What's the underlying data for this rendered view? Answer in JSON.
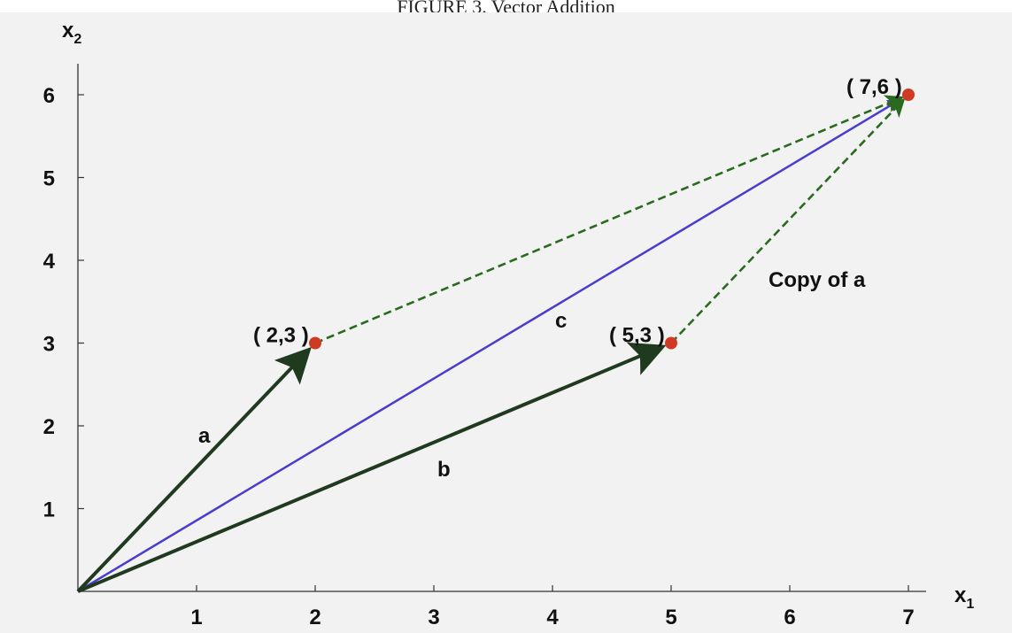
{
  "caption": "FIGURE 3.  Vector Addition",
  "axes": {
    "x_label": "x",
    "x_sub": "1",
    "y_label": "x",
    "y_sub": "2",
    "x_ticks": [
      "1",
      "2",
      "3",
      "4",
      "5",
      "6",
      "7"
    ],
    "y_ticks": [
      "1",
      "2",
      "3",
      "4",
      "5",
      "6"
    ]
  },
  "labels": {
    "a": "a",
    "b": "b",
    "c": "c",
    "copy": "Copy of a"
  },
  "points": [
    {
      "text": "( 2,3 )",
      "x": 2,
      "y": 3
    },
    {
      "text": "( 5,3 )",
      "x": 5,
      "y": 3
    },
    {
      "text": "( 7,6 )",
      "x": 7,
      "y": 6
    }
  ],
  "vectors": {
    "a": {
      "from": [
        0,
        0
      ],
      "to": [
        2,
        3
      ],
      "color": "#1f3a1f"
    },
    "b": {
      "from": [
        0,
        0
      ],
      "to": [
        5,
        3
      ],
      "color": "#1f3a1f"
    },
    "c": {
      "from": [
        0,
        0
      ],
      "to": [
        7,
        6
      ],
      "color": "#4a3ccc"
    },
    "copy_a": {
      "from": [
        5,
        3
      ],
      "to": [
        7,
        6
      ],
      "color": "#2a6a1f"
    },
    "copy_b": {
      "from": [
        2,
        3
      ],
      "to": [
        7,
        6
      ],
      "color": "#2a6a1f"
    }
  },
  "colors": {
    "point": "#d03a22",
    "axis": "#333333"
  }
}
